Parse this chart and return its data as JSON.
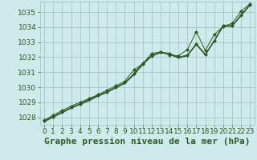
{
  "title": "Graphe pression niveau de la mer (hPa)",
  "background_color": "#ceeaea",
  "grid_color": "#9dbfbf",
  "line_color": "#2d5a27",
  "marker_color": "#2d5a27",
  "xlim": [
    -0.5,
    23.5
  ],
  "ylim": [
    1027.5,
    1035.7
  ],
  "yticks": [
    1028,
    1029,
    1030,
    1031,
    1032,
    1033,
    1034,
    1035
  ],
  "xticks": [
    0,
    1,
    2,
    3,
    4,
    5,
    6,
    7,
    8,
    9,
    10,
    11,
    12,
    13,
    14,
    15,
    16,
    17,
    18,
    19,
    20,
    21,
    22,
    23
  ],
  "series": [
    [
      1027.8,
      1028.15,
      1028.45,
      1028.75,
      1029.0,
      1029.25,
      1029.5,
      1029.8,
      1030.1,
      1030.4,
      1031.15,
      1031.55,
      1032.25,
      1032.35,
      1032.15,
      1032.1,
      1032.5,
      1033.7,
      1032.45,
      1033.5,
      1034.05,
      1034.25,
      1035.05,
      1035.55
    ],
    [
      1027.75,
      1028.05,
      1028.35,
      1028.65,
      1028.9,
      1029.15,
      1029.45,
      1029.7,
      1030.0,
      1030.3,
      1030.85,
      1031.55,
      1032.1,
      1032.3,
      1032.2,
      1031.95,
      1032.1,
      1032.85,
      1032.15,
      1033.1,
      1034.1,
      1034.1,
      1034.8,
      1035.5
    ],
    [
      1027.75,
      1028.05,
      1028.35,
      1028.65,
      1028.9,
      1029.2,
      1029.45,
      1029.7,
      1030.0,
      1030.3,
      1030.9,
      1031.6,
      1032.1,
      1032.35,
      1032.25,
      1032.0,
      1032.15,
      1032.9,
      1032.2,
      1033.1,
      1034.1,
      1034.1,
      1034.8,
      1035.5
    ],
    [
      1027.7,
      1028.0,
      1028.3,
      1028.6,
      1028.85,
      1029.1,
      1029.4,
      1029.65,
      1029.95,
      1030.25,
      1030.8,
      1031.5,
      1032.05,
      1032.3,
      1032.2,
      1031.95,
      1032.1,
      1032.85,
      1032.15,
      1033.05,
      1034.05,
      1034.05,
      1034.75,
      1035.45
    ]
  ],
  "marker_series": [
    0,
    2
  ],
  "title_fontsize": 8,
  "tick_fontsize": 6.5
}
